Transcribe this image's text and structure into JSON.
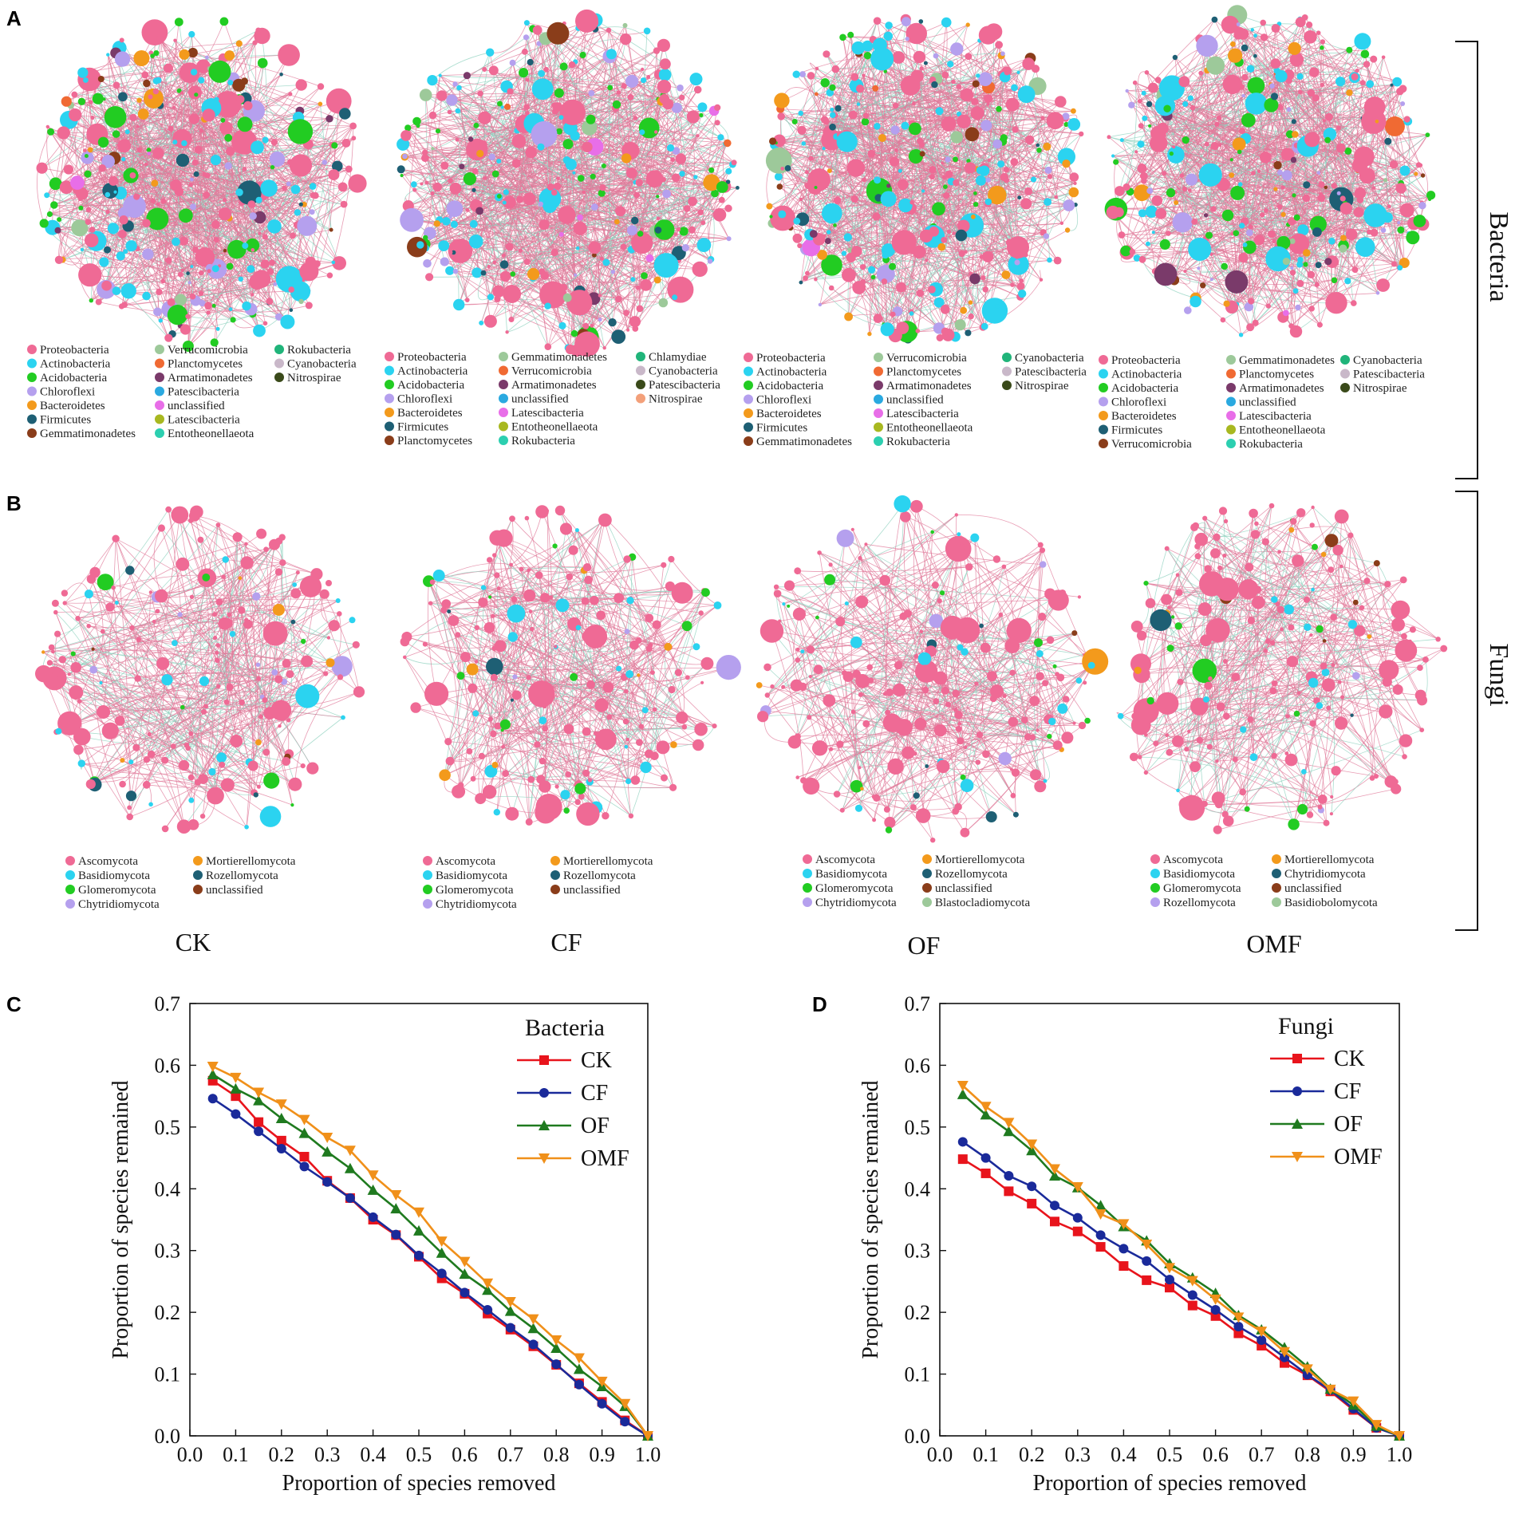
{
  "panel_letters": {
    "a": "A",
    "b": "B",
    "c": "C",
    "d": "D"
  },
  "side_labels": {
    "bacteria": "Bacteria",
    "fungi": "Fungi"
  },
  "treatments": [
    "CK",
    "CF",
    "OF",
    "OMF"
  ],
  "phylum_colors": {
    "Proteobacteria": "#ef6a95",
    "Actinobacteria": "#2bd3f0",
    "Acidobacteria": "#22cc22",
    "Chloroflexi": "#b5a0ee",
    "Bacteroidetes": "#f39a1c",
    "Firmicutes": "#1e5f74",
    "Gemmatimonadetes": "#8a3d1a",
    "Verrucomicrobia": "#9dc99a",
    "Planctomycetes": "#f06a33",
    "Armatimonadetes": "#7a3a6a",
    "Patescibacteria": "#2aa9e0",
    "unclassified": "#e86ee8",
    "Latescibacteria": "#a8b820",
    "Entotheonellaeota": "#2ccfb0",
    "Rokubacteria": "#20b47a",
    "Cyanobacteria": "#c9b8c9",
    "Nitrospirae": "#3a4a1a",
    "Chlamydiae": "#20b47a",
    "Nitrospirae_CF": "#f3a07a",
    "Ascomycota": "#ef6a95",
    "Basidiomycota": "#2bd3f0",
    "Glomeromycota": "#22cc22",
    "Chytridiomycota": "#b5a0ee",
    "Mortierellomycota": "#f39a1c",
    "Rozellomycota": "#1e5f74",
    "Blastocladiomycota": "#9dc99a",
    "Basidiobolomycota": "#9dc99a"
  },
  "bacteria_legends": [
    [
      [
        "Proteobacteria",
        "#ef6a95"
      ],
      [
        "Actinobacteria",
        "#2bd3f0"
      ],
      [
        "Acidobacteria",
        "#22cc22"
      ],
      [
        "Chloroflexi",
        "#b5a0ee"
      ],
      [
        "Bacteroidetes",
        "#f39a1c"
      ],
      [
        "Firmicutes",
        "#1e5f74"
      ],
      [
        "Gemmatimonadetes",
        "#8a3d1a"
      ],
      [
        "Verrucomicrobia",
        "#9dc99a"
      ],
      [
        "Planctomycetes",
        "#f06a33"
      ],
      [
        "Armatimonadetes",
        "#7a3a6a"
      ],
      [
        "Patescibacteria",
        "#2aa9e0"
      ],
      [
        "unclassified",
        "#e86ee8"
      ],
      [
        "Latescibacteria",
        "#a8b820"
      ],
      [
        "Entotheonellaeota",
        "#2ccfb0"
      ],
      [
        "Rokubacteria",
        "#20b47a"
      ],
      [
        "Cyanobacteria",
        "#c9b8c9"
      ],
      [
        "Nitrospirae",
        "#3a4a1a"
      ]
    ],
    [
      [
        "Proteobacteria",
        "#ef6a95"
      ],
      [
        "Actinobacteria",
        "#2bd3f0"
      ],
      [
        "Acidobacteria",
        "#22cc22"
      ],
      [
        "Chloroflexi",
        "#b5a0ee"
      ],
      [
        "Bacteroidetes",
        "#f39a1c"
      ],
      [
        "Firmicutes",
        "#1e5f74"
      ],
      [
        "Planctomycetes",
        "#8a3d1a"
      ],
      [
        "Gemmatimonadetes",
        "#9dc99a"
      ],
      [
        "Verrucomicrobia",
        "#f06a33"
      ],
      [
        "Armatimonadetes",
        "#7a3a6a"
      ],
      [
        "unclassified",
        "#2aa9e0"
      ],
      [
        "Latescibacteria",
        "#e86ee8"
      ],
      [
        "Entotheonellaeota",
        "#a8b820"
      ],
      [
        "Rokubacteria",
        "#2ccfb0"
      ],
      [
        "Chlamydiae",
        "#20b47a"
      ],
      [
        "Cyanobacteria",
        "#c9b8c9"
      ],
      [
        "Patescibacteria",
        "#3a4a1a"
      ],
      [
        "Nitrospirae",
        "#f3a07a"
      ]
    ],
    [
      [
        "Proteobacteria",
        "#ef6a95"
      ],
      [
        "Actinobacteria",
        "#2bd3f0"
      ],
      [
        "Acidobacteria",
        "#22cc22"
      ],
      [
        "Chloroflexi",
        "#b5a0ee"
      ],
      [
        "Bacteroidetes",
        "#f39a1c"
      ],
      [
        "Firmicutes",
        "#1e5f74"
      ],
      [
        "Gemmatimonadetes",
        "#8a3d1a"
      ],
      [
        "Verrucomicrobia",
        "#9dc99a"
      ],
      [
        "Planctomycetes",
        "#f06a33"
      ],
      [
        "Armatimonadetes",
        "#7a3a6a"
      ],
      [
        "unclassified",
        "#2aa9e0"
      ],
      [
        "Latescibacteria",
        "#e86ee8"
      ],
      [
        "Entotheonellaeota",
        "#a8b820"
      ],
      [
        "Rokubacteria",
        "#2ccfb0"
      ],
      [
        "Cyanobacteria",
        "#20b47a"
      ],
      [
        "Patescibacteria",
        "#c9b8c9"
      ],
      [
        "Nitrospirae",
        "#3a4a1a"
      ]
    ],
    [
      [
        "Proteobacteria",
        "#ef6a95"
      ],
      [
        "Actinobacteria",
        "#2bd3f0"
      ],
      [
        "Acidobacteria",
        "#22cc22"
      ],
      [
        "Chloroflexi",
        "#b5a0ee"
      ],
      [
        "Bacteroidetes",
        "#f39a1c"
      ],
      [
        "Firmicutes",
        "#1e5f74"
      ],
      [
        "Verrucomicrobia",
        "#8a3d1a"
      ],
      [
        "Gemmatimonadetes",
        "#9dc99a"
      ],
      [
        "Planctomycetes",
        "#f06a33"
      ],
      [
        "Armatimonadetes",
        "#7a3a6a"
      ],
      [
        "unclassified",
        "#2aa9e0"
      ],
      [
        "Latescibacteria",
        "#e86ee8"
      ],
      [
        "Entotheonellaeota",
        "#a8b820"
      ],
      [
        "Rokubacteria",
        "#2ccfb0"
      ],
      [
        "Cyanobacteria",
        "#20b47a"
      ],
      [
        "Patescibacteria",
        "#c9b8c9"
      ],
      [
        "Nitrospirae",
        "#3a4a1a"
      ]
    ]
  ],
  "fungi_legends": [
    [
      [
        "Ascomycota",
        "#ef6a95"
      ],
      [
        "Basidiomycota",
        "#2bd3f0"
      ],
      [
        "Glomeromycota",
        "#22cc22"
      ],
      [
        "Chytridiomycota",
        "#b5a0ee"
      ],
      [
        "Mortierellomycota",
        "#f39a1c"
      ],
      [
        "Rozellomycota",
        "#1e5f74"
      ],
      [
        "unclassified",
        "#8a3d1a"
      ]
    ],
    [
      [
        "Ascomycota",
        "#ef6a95"
      ],
      [
        "Basidiomycota",
        "#2bd3f0"
      ],
      [
        "Glomeromycota",
        "#22cc22"
      ],
      [
        "Chytridiomycota",
        "#b5a0ee"
      ],
      [
        "Mortierellomycota",
        "#f39a1c"
      ],
      [
        "Rozellomycota",
        "#1e5f74"
      ],
      [
        "unclassified",
        "#8a3d1a"
      ]
    ],
    [
      [
        "Ascomycota",
        "#ef6a95"
      ],
      [
        "Basidiomycota",
        "#2bd3f0"
      ],
      [
        "Glomeromycota",
        "#22cc22"
      ],
      [
        "Chytridiomycota",
        "#b5a0ee"
      ],
      [
        "Mortierellomycota",
        "#f39a1c"
      ],
      [
        "Rozellomycota",
        "#1e5f74"
      ],
      [
        "unclassified",
        "#8a3d1a"
      ],
      [
        "Blastocladiomycota",
        "#9dc99a"
      ]
    ],
    [
      [
        "Ascomycota",
        "#ef6a95"
      ],
      [
        "Basidiomycota",
        "#2bd3f0"
      ],
      [
        "Glomeromycota",
        "#22cc22"
      ],
      [
        "Rozellomycota",
        "#b5a0ee"
      ],
      [
        "Mortierellomycota",
        "#f39a1c"
      ],
      [
        "Chytridiomycota",
        "#1e5f74"
      ],
      [
        "unclassified",
        "#8a3d1a"
      ],
      [
        "Basidiobolomycota",
        "#9dc99a"
      ]
    ]
  ],
  "network_edge_colors": {
    "positive": "#e07a9a",
    "negative": "#8fd1bf"
  },
  "series_colors": {
    "CK": "#e8141c",
    "CF": "#1a2a9a",
    "OF": "#1f7a1f",
    "OMF": "#f0901a"
  },
  "series_markers": {
    "CK": "square",
    "CF": "circle",
    "OF": "triangle-up",
    "OMF": "triangle-down"
  },
  "chart_data": [
    {
      "type": "line",
      "panel": "C",
      "title": "Bacteria",
      "xlabel": "Proportion of species removed",
      "ylabel": "Proportion of species remained",
      "xlim": [
        0.0,
        1.0
      ],
      "ylim": [
        0.0,
        0.7
      ],
      "xticks": [
        "0.0",
        "0.1",
        "0.2",
        "0.3",
        "0.4",
        "0.5",
        "0.6",
        "0.7",
        "0.8",
        "0.9",
        "1.0"
      ],
      "yticks": [
        "0.0",
        "0.1",
        "0.2",
        "0.3",
        "0.4",
        "0.5",
        "0.6",
        "0.7"
      ],
      "x": [
        0.05,
        0.1,
        0.15,
        0.2,
        0.25,
        0.3,
        0.35,
        0.4,
        0.45,
        0.5,
        0.55,
        0.6,
        0.65,
        0.7,
        0.75,
        0.8,
        0.85,
        0.9,
        0.95,
        1.0
      ],
      "series": [
        {
          "name": "CK",
          "values": [
            0.575,
            0.55,
            0.508,
            0.478,
            0.452,
            0.413,
            0.385,
            0.35,
            0.325,
            0.29,
            0.255,
            0.23,
            0.198,
            0.172,
            0.145,
            0.115,
            0.085,
            0.055,
            0.025,
            0.0
          ]
        },
        {
          "name": "CF",
          "values": [
            0.546,
            0.521,
            0.493,
            0.465,
            0.436,
            0.411,
            0.385,
            0.354,
            0.326,
            0.292,
            0.263,
            0.232,
            0.204,
            0.175,
            0.148,
            0.116,
            0.083,
            0.052,
            0.023,
            0.0
          ]
        },
        {
          "name": "OF",
          "values": [
            0.585,
            0.562,
            0.543,
            0.514,
            0.49,
            0.46,
            0.433,
            0.398,
            0.368,
            0.332,
            0.296,
            0.262,
            0.236,
            0.202,
            0.174,
            0.142,
            0.108,
            0.08,
            0.048,
            0.0
          ]
        },
        {
          "name": "OMF",
          "values": [
            0.598,
            0.58,
            0.556,
            0.537,
            0.512,
            0.483,
            0.462,
            0.422,
            0.39,
            0.362,
            0.315,
            0.282,
            0.247,
            0.217,
            0.189,
            0.155,
            0.126,
            0.088,
            0.052,
            0.0
          ]
        }
      ]
    },
    {
      "type": "line",
      "panel": "D",
      "title": "Fungi",
      "xlabel": "Proportion of species removed",
      "ylabel": "Proportion of species remained",
      "xlim": [
        0.0,
        1.0
      ],
      "ylim": [
        0.0,
        0.7
      ],
      "xticks": [
        "0.0",
        "0.1",
        "0.2",
        "0.3",
        "0.4",
        "0.5",
        "0.6",
        "0.7",
        "0.8",
        "0.9",
        "1.0"
      ],
      "yticks": [
        "0.0",
        "0.1",
        "0.2",
        "0.3",
        "0.4",
        "0.5",
        "0.6",
        "0.7"
      ],
      "x": [
        0.05,
        0.1,
        0.15,
        0.2,
        0.25,
        0.3,
        0.35,
        0.4,
        0.45,
        0.5,
        0.55,
        0.6,
        0.65,
        0.7,
        0.75,
        0.8,
        0.85,
        0.9,
        0.95,
        1.0
      ],
      "series": [
        {
          "name": "CK",
          "values": [
            0.448,
            0.425,
            0.396,
            0.376,
            0.347,
            0.331,
            0.306,
            0.275,
            0.252,
            0.24,
            0.211,
            0.194,
            0.166,
            0.146,
            0.118,
            0.098,
            0.072,
            0.042,
            0.013,
            0.0
          ]
        },
        {
          "name": "CF",
          "values": [
            0.476,
            0.45,
            0.421,
            0.404,
            0.373,
            0.353,
            0.325,
            0.303,
            0.283,
            0.253,
            0.228,
            0.204,
            0.177,
            0.155,
            0.127,
            0.099,
            0.074,
            0.044,
            0.013,
            0.0
          ]
        },
        {
          "name": "OF",
          "values": [
            0.553,
            0.52,
            0.493,
            0.462,
            0.421,
            0.402,
            0.373,
            0.339,
            0.316,
            0.279,
            0.256,
            0.231,
            0.195,
            0.172,
            0.143,
            0.112,
            0.076,
            0.05,
            0.016,
            0.0
          ]
        },
        {
          "name": "OMF",
          "values": [
            0.567,
            0.533,
            0.507,
            0.472,
            0.432,
            0.403,
            0.359,
            0.343,
            0.31,
            0.272,
            0.251,
            0.221,
            0.192,
            0.169,
            0.136,
            0.108,
            0.075,
            0.056,
            0.018,
            0.0
          ]
        }
      ]
    }
  ]
}
